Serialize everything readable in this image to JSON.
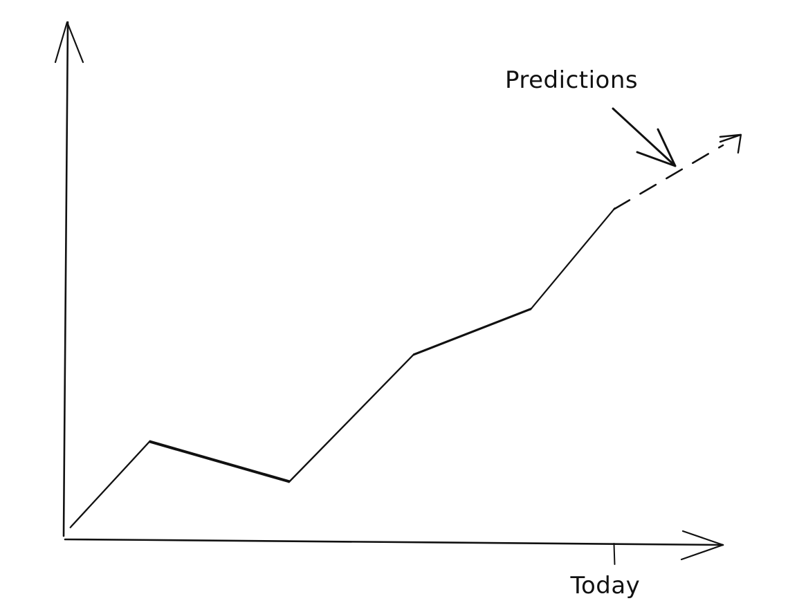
{
  "chart_data": {
    "type": "line",
    "title": "",
    "xlabel": "",
    "ylabel": "",
    "grid": false,
    "xlim": [
      0,
      10
    ],
    "ylim": [
      0,
      10
    ],
    "x": [
      0.06,
      1.26,
      3.39,
      5.28,
      7.07,
      8.34,
      10.0
    ],
    "series": [
      {
        "values": [
          0.25,
          2.04,
          1.2,
          3.86,
          4.82,
          6.92,
          8.26
        ],
        "segments": [
          "actual",
          "actual",
          "actual",
          "actual",
          "actual",
          "prediction"
        ]
      }
    ],
    "today_x": 8.34,
    "annotations": [
      {
        "text": "Predictions",
        "points_to": "prediction"
      },
      {
        "text": "Today",
        "marks": "today_x"
      }
    ],
    "colors": {
      "ink": "#111111",
      "background": "#ffffff"
    }
  }
}
